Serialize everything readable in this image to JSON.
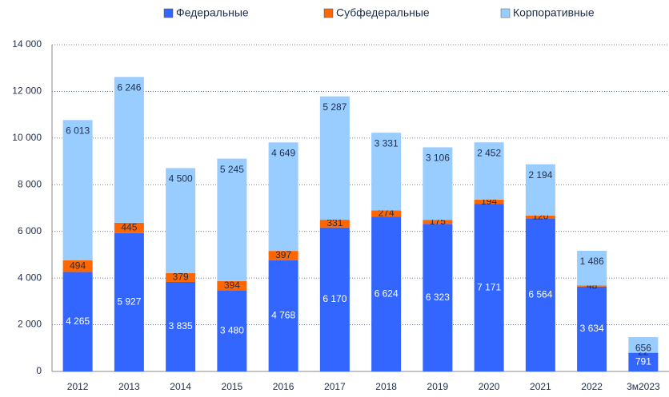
{
  "chart_data": {
    "type": "stacked_bar",
    "categories": [
      "2012",
      "2013",
      "2014",
      "2015",
      "2016",
      "2017",
      "2018",
      "2019",
      "2020",
      "2021",
      "2022",
      "3м2023"
    ],
    "series": [
      {
        "name": "Федеральные",
        "color": "#3366ff",
        "values": [
          4265,
          5927,
          3835,
          3480,
          4768,
          6170,
          6624,
          6323,
          7171,
          6564,
          3634,
          791
        ],
        "value_labels": [
          "4 265",
          "5 927",
          "3 835",
          "3 480",
          "4 768",
          "6 170",
          "6 624",
          "6 323",
          "7 171",
          "6 564",
          "3 634",
          "791"
        ]
      },
      {
        "name": "Субфедеральные",
        "color": "#ff6600",
        "values": [
          494,
          445,
          379,
          394,
          397,
          331,
          274,
          175,
          194,
          120,
          48,
          22
        ],
        "value_labels": [
          "494",
          "445",
          "379",
          "394",
          "397",
          "331",
          "274",
          "175",
          "194",
          "120",
          "48",
          "22"
        ]
      },
      {
        "name": "Корпоративные",
        "color": "#99ccff",
        "values": [
          6013,
          6246,
          4500,
          5245,
          4649,
          5287,
          3331,
          3106,
          2452,
          2194,
          1486,
          656
        ],
        "value_labels": [
          "6 013",
          "6 246",
          "4 500",
          "5 245",
          "4 649",
          "5 287",
          "3 331",
          "3 106",
          "2 452",
          "2 194",
          "1 486",
          "656"
        ]
      }
    ],
    "ylim": [
      0,
      14000
    ],
    "yticks": [
      0,
      {
        "value": 2000,
        "label": "2 000"
      },
      {
        "value": 4000,
        "label": "4 000"
      },
      {
        "value": 6000,
        "label": "6 000"
      },
      {
        "value": 8000,
        "label": "8 000"
      },
      {
        "value": 10000,
        "label": "10 000"
      },
      {
        "value": 12000,
        "label": "12 000"
      },
      {
        "value": 14000,
        "label": "14 000"
      }
    ],
    "grid": true,
    "legend": "top"
  }
}
